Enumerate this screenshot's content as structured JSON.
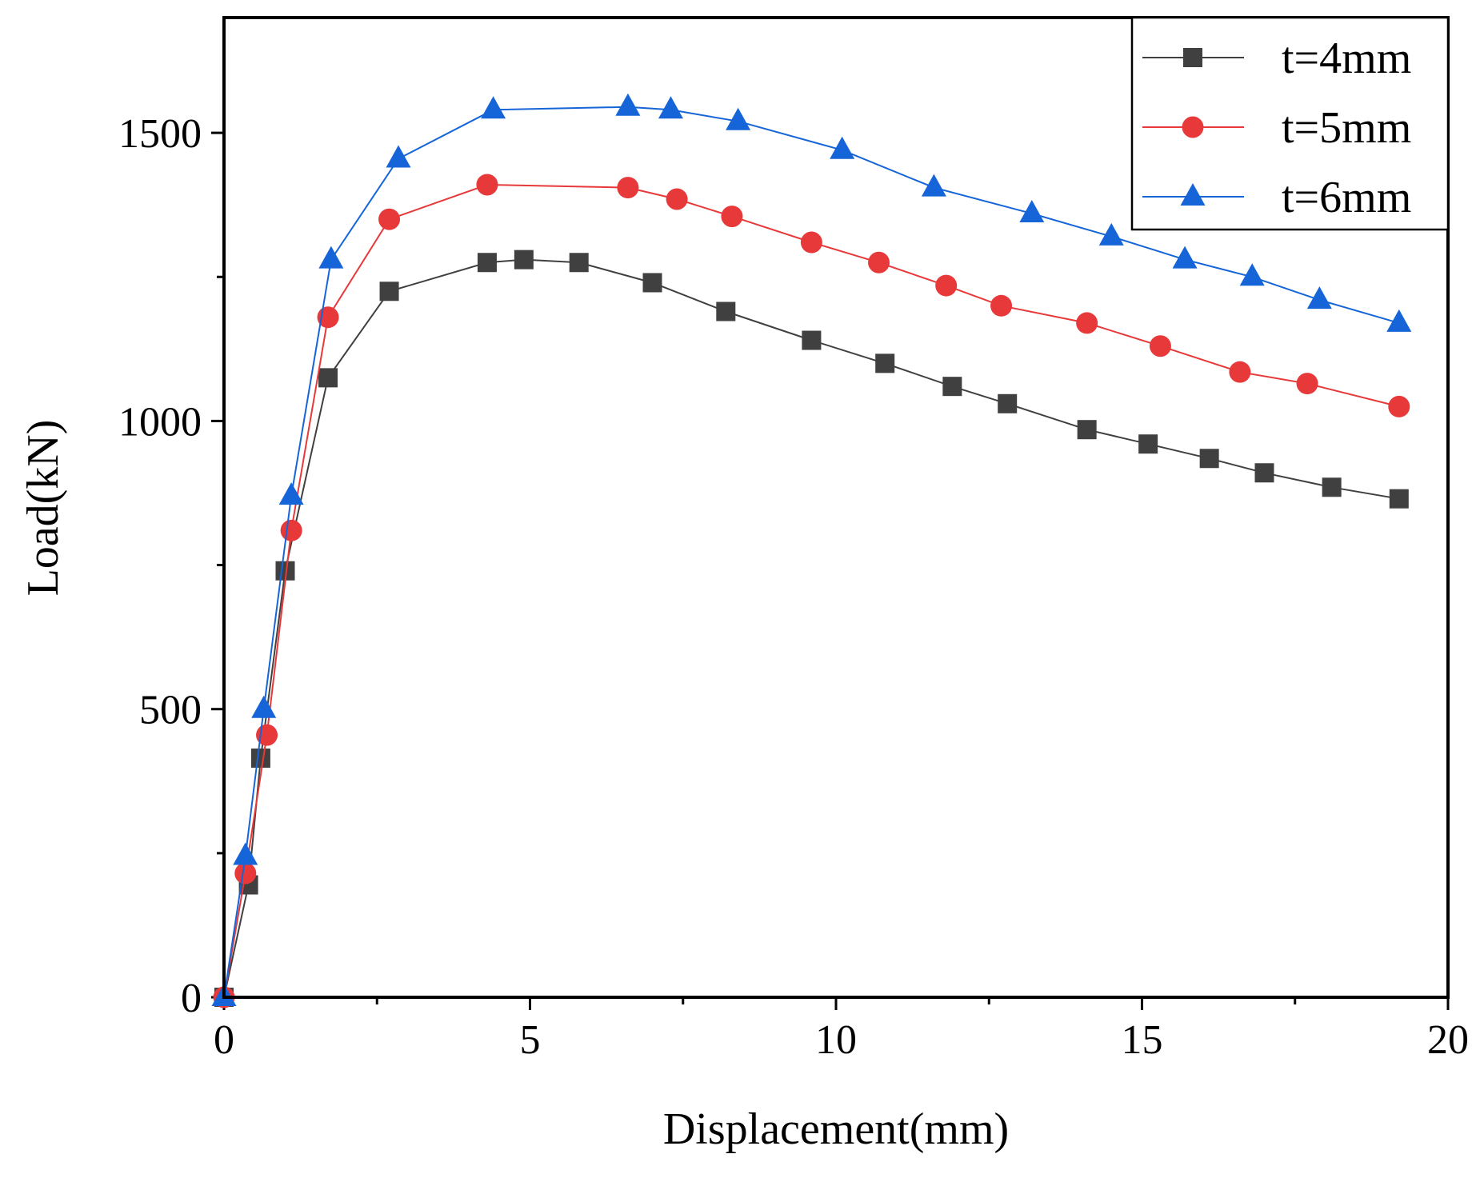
{
  "chart_data": {
    "type": "line",
    "xlabel": "Displacement(mm)",
    "ylabel": "Load(kN)",
    "xlim": [
      0,
      20
    ],
    "ylim": [
      0,
      1700
    ],
    "x_ticks": [
      0,
      5,
      10,
      15,
      20
    ],
    "x_minor_ticks": [
      2.5,
      7.5,
      12.5,
      17.5
    ],
    "y_ticks": [
      0,
      500,
      1000,
      1500
    ],
    "y_minor_ticks": [
      250,
      750,
      1250
    ],
    "grid": false,
    "legend_position": "top-right",
    "series": [
      {
        "name": "t=4mm",
        "color": "#404040",
        "marker": "square",
        "x": [
          0.0,
          0.4,
          0.6,
          1.0,
          1.7,
          2.7,
          4.3,
          4.9,
          5.8,
          7.0,
          8.2,
          9.6,
          10.8,
          11.9,
          12.8,
          14.1,
          15.1,
          16.1,
          17.0,
          18.1,
          19.2
        ],
        "y": [
          0,
          195,
          415,
          740,
          1075,
          1225,
          1275,
          1280,
          1275,
          1240,
          1190,
          1140,
          1100,
          1060,
          1030,
          985,
          960,
          935,
          910,
          885,
          865
        ]
      },
      {
        "name": "t=5mm",
        "color": "#e8393a",
        "marker": "circle",
        "x": [
          0.0,
          0.35,
          0.7,
          1.1,
          1.7,
          2.7,
          4.3,
          6.6,
          7.4,
          8.3,
          9.6,
          10.7,
          11.8,
          12.7,
          14.1,
          15.3,
          16.6,
          17.7,
          19.2
        ],
        "y": [
          0,
          215,
          455,
          810,
          1180,
          1350,
          1410,
          1405,
          1385,
          1355,
          1310,
          1275,
          1235,
          1200,
          1170,
          1130,
          1085,
          1065,
          1025
        ]
      },
      {
        "name": "t=6mm",
        "color": "#1565d8",
        "marker": "triangle",
        "x": [
          0.0,
          0.35,
          0.65,
          1.1,
          1.75,
          2.85,
          4.4,
          6.6,
          7.3,
          8.4,
          10.1,
          11.6,
          13.2,
          14.5,
          15.7,
          16.8,
          17.9,
          19.2
        ],
        "y": [
          0,
          245,
          500,
          870,
          1280,
          1455,
          1540,
          1545,
          1540,
          1520,
          1470,
          1405,
          1360,
          1320,
          1280,
          1250,
          1210,
          1170
        ]
      }
    ]
  }
}
